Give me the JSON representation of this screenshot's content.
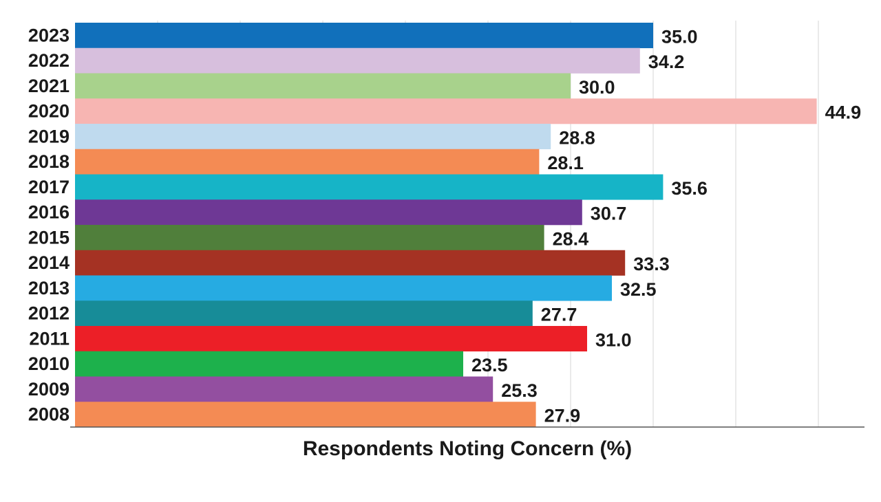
{
  "chart_data": {
    "type": "bar",
    "orientation": "horizontal",
    "title": "",
    "xlabel": "Respondents Noting Concern (%)",
    "ylabel": "",
    "xlim": [
      0,
      48
    ],
    "x_gridlines": [
      5,
      10,
      15,
      20,
      25,
      30,
      35,
      40,
      45
    ],
    "grid": true,
    "categories": [
      "2023",
      "2022",
      "2021",
      "2020",
      "2019",
      "2018",
      "2017",
      "2016",
      "2015",
      "2014",
      "2013",
      "2012",
      "2011",
      "2010",
      "2009",
      "2008"
    ],
    "values": [
      35.0,
      34.2,
      30.0,
      44.9,
      28.8,
      28.1,
      35.6,
      30.7,
      28.4,
      33.3,
      32.5,
      27.7,
      31.0,
      23.5,
      25.3,
      27.9
    ],
    "value_labels": [
      "35.0",
      "34.2",
      "30.0",
      "44.9",
      "28.8",
      "28.1",
      "35.6",
      "30.7",
      "28.4",
      "33.3",
      "32.5",
      "27.7",
      "31.0",
      "23.5",
      "25.3",
      "27.9"
    ],
    "colors": [
      "#1170bb",
      "#d7bfdd",
      "#a8d28c",
      "#f7b5b2",
      "#bfdaee",
      "#f48b54",
      "#16b4c7",
      "#6e3895",
      "#507f3b",
      "#a53223",
      "#26abe2",
      "#178c98",
      "#ec1f27",
      "#1db14c",
      "#934fa0",
      "#f48b54"
    ]
  }
}
